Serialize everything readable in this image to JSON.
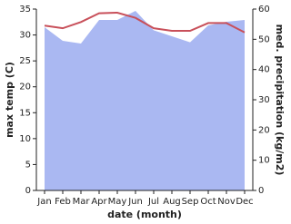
{
  "chart_data": {
    "type": "line-area",
    "x_label": "date (month)",
    "y_label": "max temp (C)",
    "y2_label": "med. precipitation (kg/m2)",
    "categories": [
      "Jan",
      "Feb",
      "Mar",
      "Apr",
      "May",
      "Jun",
      "Jul",
      "Aug",
      "Sep",
      "Oct",
      "Nov",
      "Dec"
    ],
    "ylim": [
      0,
      35
    ],
    "yticks": [
      0,
      5,
      10,
      15,
      20,
      25,
      30,
      35
    ],
    "y2lim": [
      0,
      60
    ],
    "y2ticks": [
      0,
      10,
      20,
      30,
      40,
      50,
      60
    ],
    "series": [
      {
        "name": "med. precipitation",
        "color": "#aab8f2",
        "axis": "y2",
        "kind": "area",
        "values": [
          54,
          49.5,
          48.6,
          56.4,
          56.4,
          59.4,
          53,
          51,
          49,
          54.6,
          55.8,
          56.4
        ]
      },
      {
        "name": "max temp",
        "color": "#c8505a",
        "axis": "y",
        "kind": "line",
        "values": [
          31.8,
          31.3,
          32.5,
          34.2,
          34.3,
          33.3,
          31.3,
          30.8,
          30.8,
          32.3,
          32.3,
          30.5
        ]
      }
    ]
  }
}
